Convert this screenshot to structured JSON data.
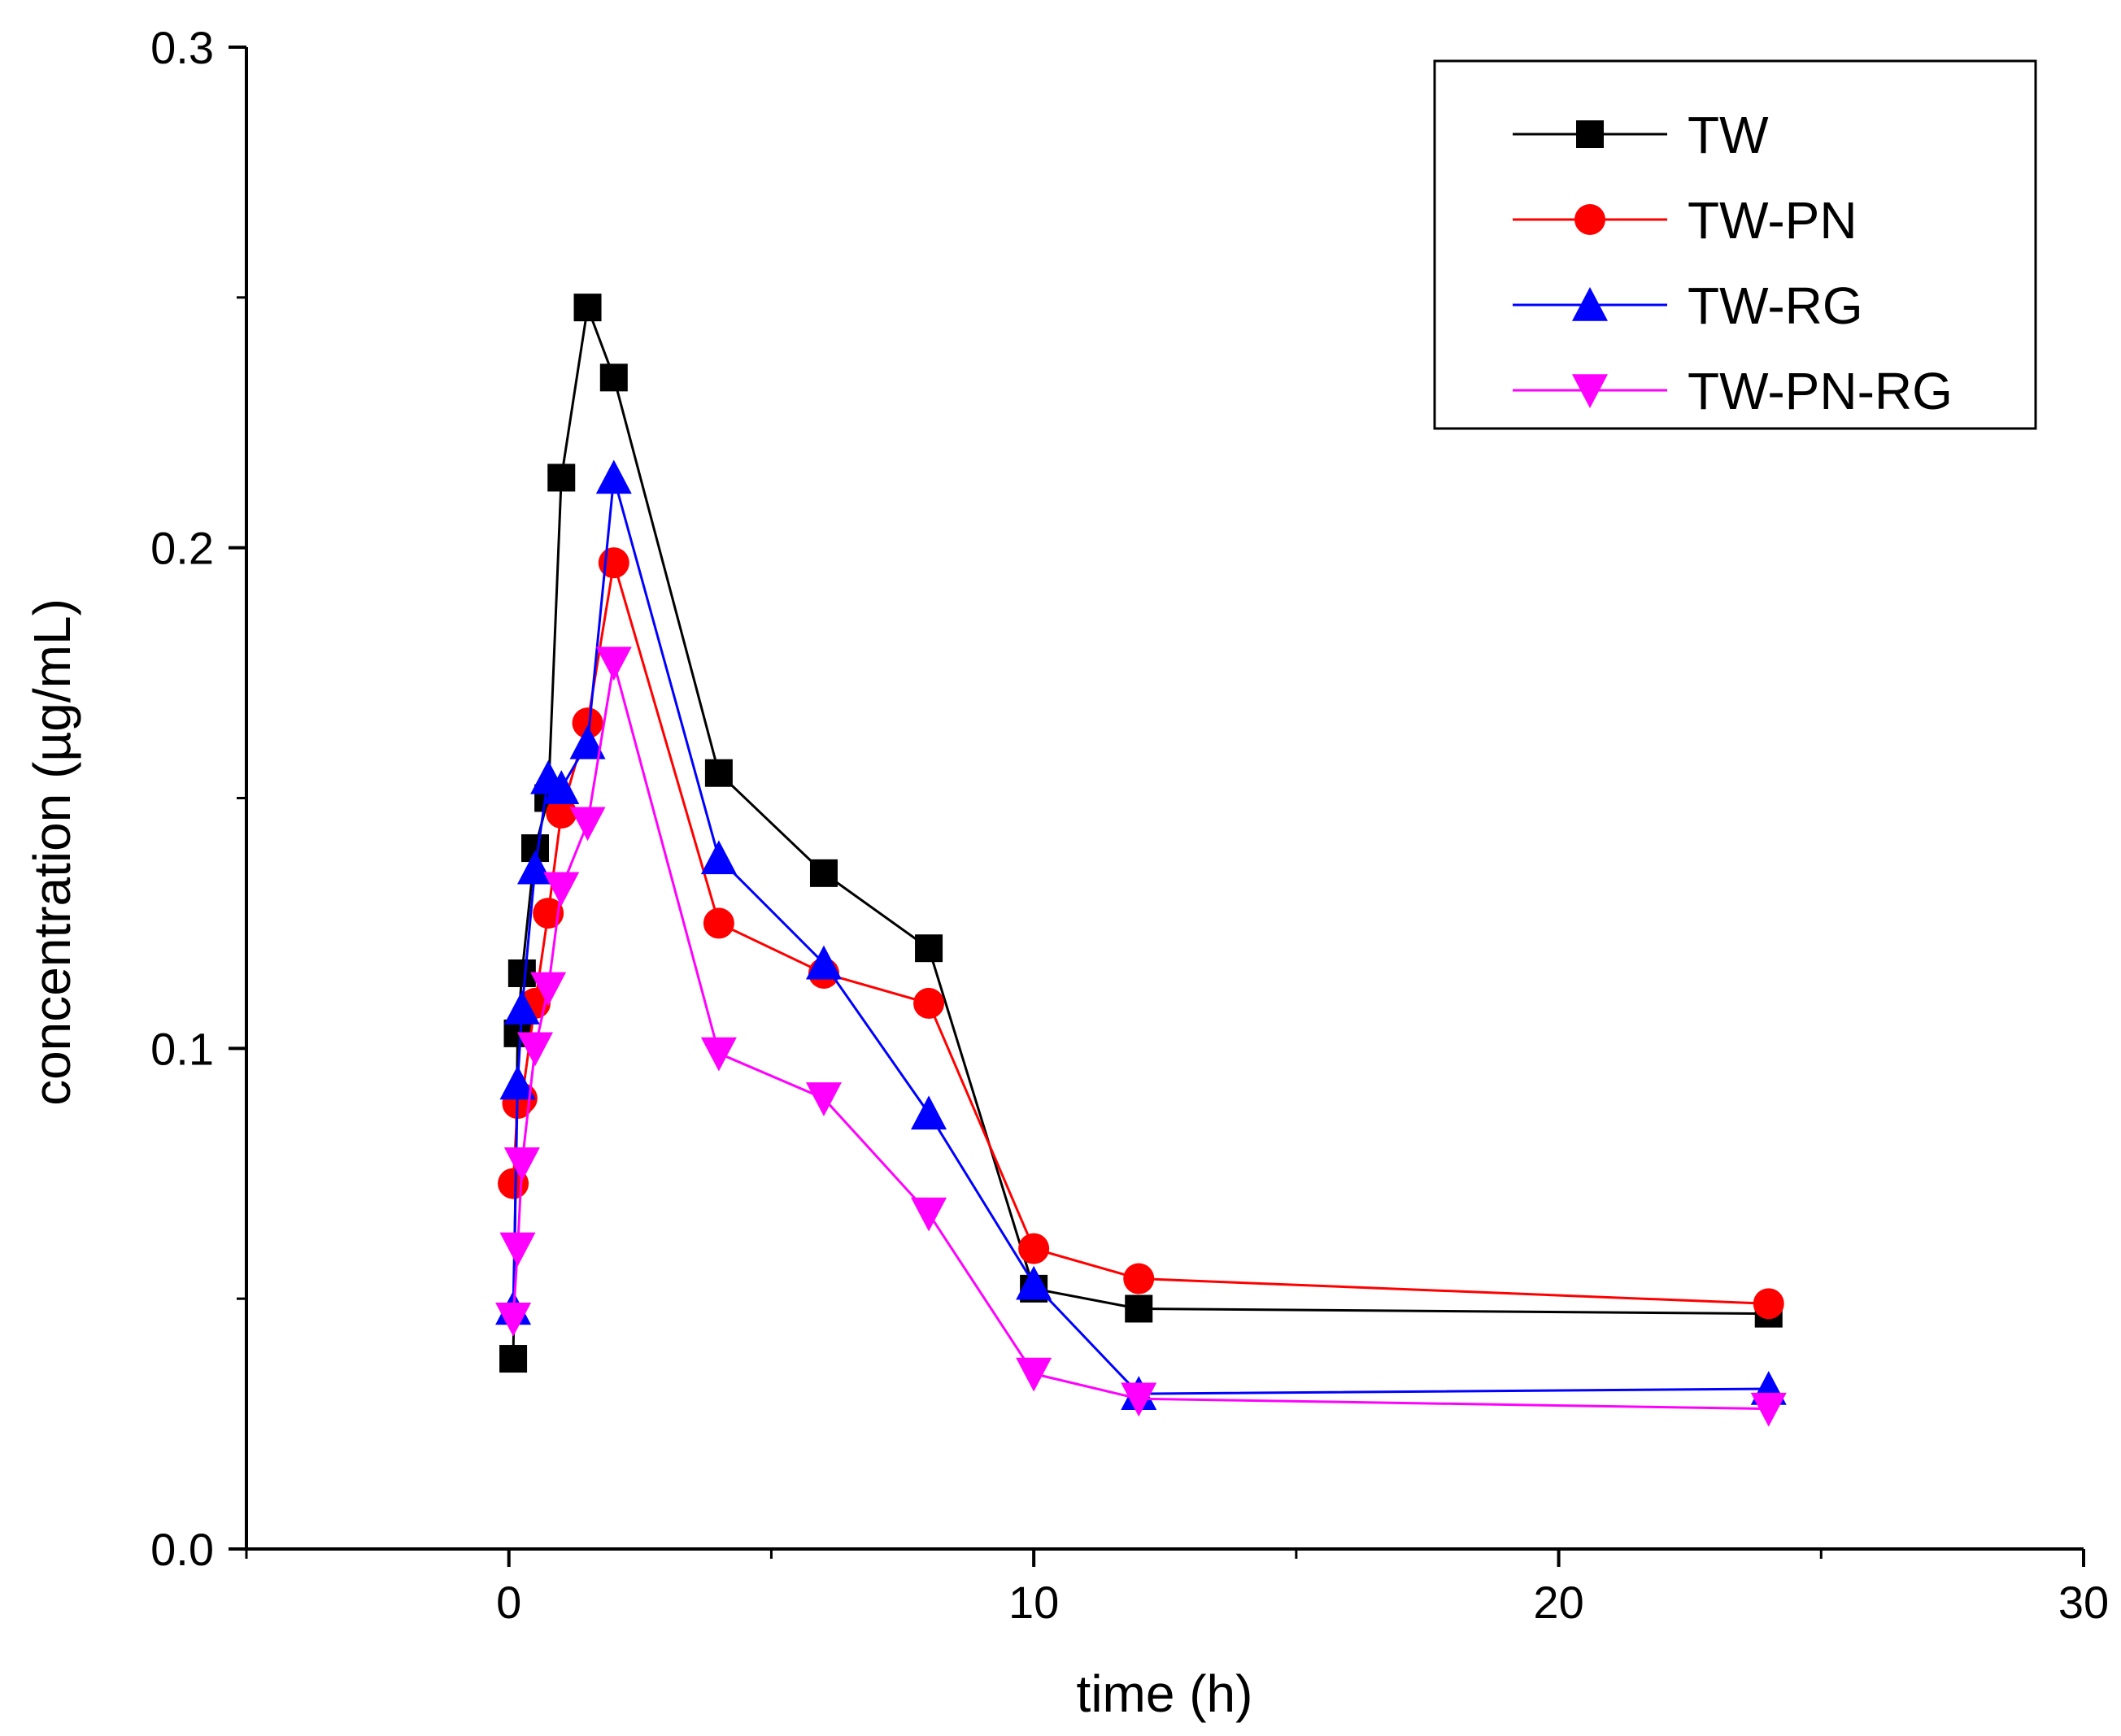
{
  "chart_data": {
    "type": "line",
    "title": "",
    "xlabel": "time (h)",
    "ylabel": "concentration (µg/mL)",
    "xlim": [
      -5,
      30
    ],
    "ylim": [
      0,
      0.3
    ],
    "x_ticks": [
      0,
      10,
      20,
      30
    ],
    "x_tick_labels": [
      "0",
      "10",
      "20",
      "30"
    ],
    "y_ticks": [
      0,
      0.1,
      0.2,
      0.3
    ],
    "y_tick_labels": [
      "0.0",
      "0.1",
      "0.2",
      "0.3"
    ],
    "grid": false,
    "legend_position": "top-right",
    "x": [
      0.083,
      0.167,
      0.25,
      0.5,
      0.75,
      1,
      1.5,
      2,
      4,
      6,
      8,
      10,
      12,
      24
    ],
    "series": [
      {
        "name": "TW",
        "color": "#000000",
        "marker": "square",
        "values": [
          0.038,
          0.103,
          0.115,
          0.14,
          0.15,
          0.214,
          0.248,
          0.234,
          0.155,
          0.135,
          0.12,
          0.052,
          0.048,
          0.047
        ]
      },
      {
        "name": "TW-PN",
        "color": "#ff0000",
        "marker": "circle",
        "values": [
          0.073,
          0.089,
          0.09,
          0.109,
          0.127,
          0.147,
          0.165,
          0.197,
          0.125,
          0.115,
          0.109,
          0.06,
          0.054,
          0.049
        ]
      },
      {
        "name": "TW-RG",
        "color": "#0000ff",
        "marker": "triangle-up",
        "values": [
          0.048,
          0.093,
          0.108,
          0.136,
          0.154,
          0.152,
          0.161,
          0.214,
          0.138,
          0.117,
          0.087,
          0.053,
          0.031,
          0.032
        ]
      },
      {
        "name": "TW-PN-RG",
        "color": "#ff00ff",
        "marker": "triangle-down",
        "values": [
          0.046,
          0.06,
          0.077,
          0.1,
          0.112,
          0.132,
          0.145,
          0.177,
          0.099,
          0.09,
          0.067,
          0.035,
          0.03,
          0.028
        ]
      }
    ]
  }
}
